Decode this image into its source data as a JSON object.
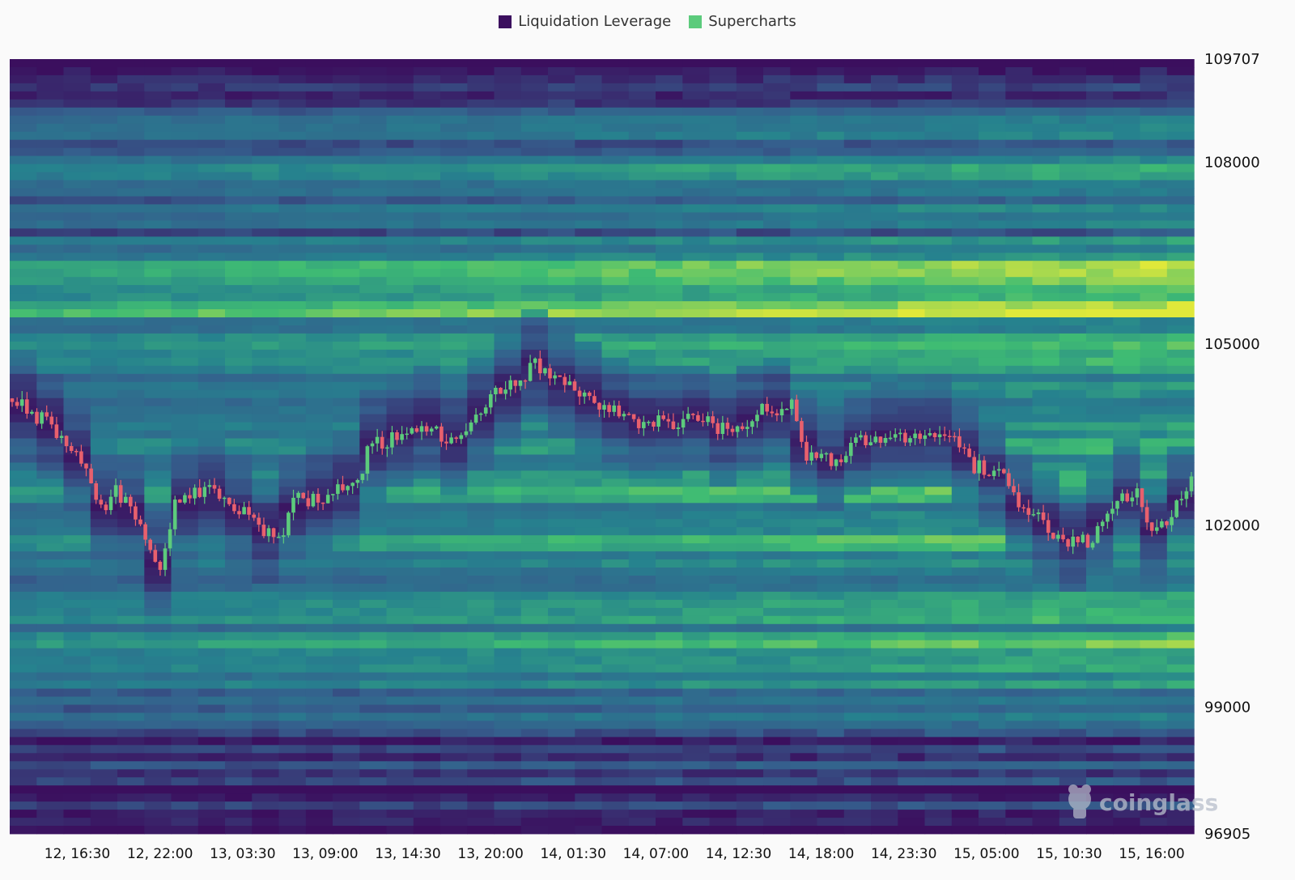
{
  "legend": {
    "items": [
      {
        "label": "Liquidation Leverage",
        "color": "#3b0f5e"
      },
      {
        "label": "Supercharts",
        "color": "#5ccb7c"
      }
    ]
  },
  "watermark": {
    "text": "coinglass",
    "icon": "coinglass-logo-icon"
  },
  "chart_data": {
    "type": "heatmap",
    "overlay": "candlestick",
    "ylim": [
      96905,
      109707
    ],
    "y_ticks": [
      109707,
      108000,
      105000,
      102000,
      99000,
      96905
    ],
    "x_ticks": [
      "12, 16:30",
      "12, 22:00",
      "13, 03:30",
      "13, 09:00",
      "13, 14:30",
      "13, 20:00",
      "14, 01:30",
      "14, 07:00",
      "14, 12:30",
      "14, 18:00",
      "14, 23:30",
      "15, 05:00",
      "15, 10:30",
      "15, 16:00"
    ],
    "x_range_hours": [
      0,
      78.8
    ],
    "colors": {
      "low": "#3b0f5e",
      "mid1": "#355f8d",
      "mid2": "#26828e",
      "mid3": "#3fbc73",
      "high": "#e0e83a",
      "up": "#5ccb7c",
      "down": "#e8606d"
    },
    "heat_bands": [
      {
        "price": 109600,
        "intensity": 0.02
      },
      {
        "price": 109100,
        "intensity": 0.1
      },
      {
        "price": 108800,
        "intensity": 0.25
      },
      {
        "price": 108600,
        "intensity": 0.35
      },
      {
        "price": 108300,
        "intensity": 0.3
      },
      {
        "price": 108000,
        "intensity": 0.45
      },
      {
        "price": 107700,
        "intensity": 0.6
      },
      {
        "price": 107400,
        "intensity": 0.3
      },
      {
        "price": 107100,
        "intensity": 0.4
      },
      {
        "price": 106800,
        "intensity": 0.35
      },
      {
        "price": 106500,
        "intensity": 0.6
      },
      {
        "price": 106200,
        "intensity": 0.92
      },
      {
        "price": 105900,
        "intensity": 0.55
      },
      {
        "price": 105600,
        "intensity": 0.97
      },
      {
        "price": 105300,
        "intensity": 0.45
      },
      {
        "price": 105050,
        "intensity": 0.72
      },
      {
        "price": 104700,
        "intensity": 0.5
      },
      {
        "price": 104300,
        "intensity": 0.55
      },
      {
        "price": 103900,
        "intensity": 0.4
      },
      {
        "price": 103500,
        "intensity": 0.45
      },
      {
        "price": 103100,
        "intensity": 0.6
      },
      {
        "price": 102700,
        "intensity": 0.8
      },
      {
        "price": 102300,
        "intensity": 0.55
      },
      {
        "price": 102000,
        "intensity": 0.5
      },
      {
        "price": 101700,
        "intensity": 0.75
      },
      {
        "price": 101300,
        "intensity": 0.45
      },
      {
        "price": 100900,
        "intensity": 0.6
      },
      {
        "price": 100600,
        "intensity": 0.75
      },
      {
        "price": 100300,
        "intensity": 0.55
      },
      {
        "price": 100000,
        "intensity": 0.7
      },
      {
        "price": 99700,
        "intensity": 0.5
      },
      {
        "price": 99400,
        "intensity": 0.45
      },
      {
        "price": 99100,
        "intensity": 0.35
      },
      {
        "price": 98800,
        "intensity": 0.3
      },
      {
        "price": 98500,
        "intensity": 0.2
      },
      {
        "price": 98100,
        "intensity": 0.12
      },
      {
        "price": 97700,
        "intensity": 0.08
      },
      {
        "price": 97300,
        "intensity": 0.05
      },
      {
        "price": 97000,
        "intensity": 0.02
      }
    ],
    "price_path": [
      [
        0,
        104100
      ],
      [
        3,
        103600
      ],
      [
        5,
        103000
      ],
      [
        6,
        102200
      ],
      [
        7,
        102600
      ],
      [
        9,
        101900
      ],
      [
        10,
        101300
      ],
      [
        11,
        102300
      ],
      [
        13,
        102600
      ],
      [
        15,
        102300
      ],
      [
        17,
        101900
      ],
      [
        18,
        101800
      ],
      [
        19,
        102400
      ],
      [
        21,
        102500
      ],
      [
        23,
        102700
      ],
      [
        24,
        103300
      ],
      [
        26,
        103500
      ],
      [
        28,
        103700
      ],
      [
        29,
        103300
      ],
      [
        31,
        103700
      ],
      [
        32,
        104100
      ],
      [
        34,
        104400
      ],
      [
        35,
        104700
      ],
      [
        36,
        104500
      ],
      [
        38,
        104200
      ],
      [
        40,
        103900
      ],
      [
        42,
        103700
      ],
      [
        44,
        103700
      ],
      [
        46,
        103800
      ],
      [
        48,
        103500
      ],
      [
        49,
        103700
      ],
      [
        50,
        103900
      ],
      [
        51,
        103900
      ],
      [
        52,
        104100
      ],
      [
        53,
        103200
      ],
      [
        54,
        103200
      ],
      [
        55,
        103000
      ],
      [
        56,
        103300
      ],
      [
        58,
        103500
      ],
      [
        60,
        103500
      ],
      [
        62,
        103500
      ],
      [
        63,
        103500
      ],
      [
        64,
        103000
      ],
      [
        66,
        102800
      ],
      [
        67,
        102400
      ],
      [
        68,
        102200
      ],
      [
        70,
        101800
      ],
      [
        72,
        101700
      ],
      [
        73,
        102300
      ],
      [
        75,
        102600
      ],
      [
        76,
        101900
      ],
      [
        77,
        102000
      ],
      [
        78,
        102500
      ],
      [
        78.8,
        102800
      ]
    ]
  }
}
